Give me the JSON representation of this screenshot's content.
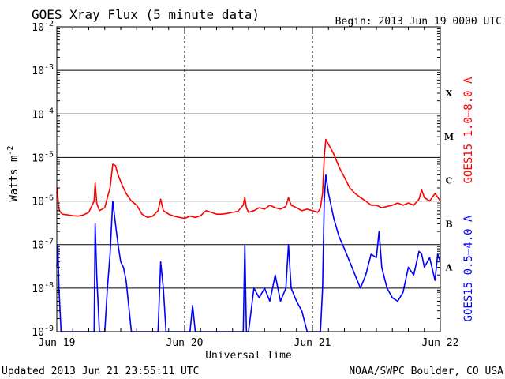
{
  "chart_data": {
    "type": "line",
    "title": "GOES Xray Flux (5 minute data)",
    "begin": "Begin:  2013 Jun 19 0000 UTC",
    "ylabel": "Watts m",
    "ylabel_sup": "-2",
    "xlabel": "Universal Time",
    "updated": "Updated 2013 Jun 21 23:55:11 UTC",
    "credit": "NOAA/SWPC Boulder, CO USA",
    "y_scale": "log",
    "ylim": [
      1e-09,
      0.01
    ],
    "xlim": [
      0,
      72
    ],
    "y_ticks": [
      {
        "value": 0.01,
        "base": "10",
        "exp": "-2"
      },
      {
        "value": 0.001,
        "base": "10",
        "exp": "-3"
      },
      {
        "value": 0.0001,
        "base": "10",
        "exp": "-4"
      },
      {
        "value": 1e-05,
        "base": "10",
        "exp": "-5"
      },
      {
        "value": 1e-06,
        "base": "10",
        "exp": "-6"
      },
      {
        "value": 1e-07,
        "base": "10",
        "exp": "-7"
      },
      {
        "value": 1e-08,
        "base": "10",
        "exp": "-8"
      },
      {
        "value": 1e-09,
        "base": "10",
        "exp": "-9"
      }
    ],
    "x_ticks": [
      {
        "value": 0,
        "label": "Jun 19"
      },
      {
        "value": 24,
        "label": "Jun 20"
      },
      {
        "value": 48,
        "label": "Jun 21"
      },
      {
        "value": 72,
        "label": "Jun 22"
      }
    ],
    "flare_classes": [
      {
        "label": "X",
        "value": 0.0003
      },
      {
        "label": "M",
        "value": 3e-05
      },
      {
        "label": "C",
        "value": 3e-06
      },
      {
        "label": "B",
        "value": 3e-07
      },
      {
        "label": "A",
        "value": 3e-08
      }
    ],
    "series": [
      {
        "name": "GOES15 1.0–8.0 A",
        "color": "#ff0000",
        "points": [
          [
            0,
            1.5e-06
          ],
          [
            0.1,
            2e-06
          ],
          [
            0.3,
            8e-07
          ],
          [
            0.5,
            6e-07
          ],
          [
            1,
            5e-07
          ],
          [
            2,
            4.8e-07
          ],
          [
            3,
            4.6e-07
          ],
          [
            4,
            4.5e-07
          ],
          [
            5,
            4.8e-07
          ],
          [
            6,
            5.5e-07
          ],
          [
            7,
            1e-06
          ],
          [
            7.2,
            2.6e-06
          ],
          [
            7.5,
            9e-07
          ],
          [
            8,
            6e-07
          ],
          [
            9,
            7e-07
          ],
          [
            9.5,
            1.2e-06
          ],
          [
            10,
            2e-06
          ],
          [
            10.5,
            7e-06
          ],
          [
            11,
            6.5e-06
          ],
          [
            11.5,
            4e-06
          ],
          [
            12,
            2.8e-06
          ],
          [
            12.5,
            2e-06
          ],
          [
            13,
            1.5e-06
          ],
          [
            14,
            1e-06
          ],
          [
            15,
            8e-07
          ],
          [
            16,
            5e-07
          ],
          [
            17,
            4.2e-07
          ],
          [
            18,
            4.5e-07
          ],
          [
            19,
            6e-07
          ],
          [
            19.5,
            1.1e-06
          ],
          [
            20,
            6e-07
          ],
          [
            21,
            5e-07
          ],
          [
            22,
            4.5e-07
          ],
          [
            23,
            4.2e-07
          ],
          [
            24,
            4e-07
          ],
          [
            25,
            4.5e-07
          ],
          [
            26,
            4.2e-07
          ],
          [
            27,
            4.6e-07
          ],
          [
            28,
            6e-07
          ],
          [
            29,
            5.5e-07
          ],
          [
            30,
            5e-07
          ],
          [
            31,
            5e-07
          ],
          [
            32,
            5.2e-07
          ],
          [
            33,
            5.5e-07
          ],
          [
            34,
            5.8e-07
          ],
          [
            35,
            8e-07
          ],
          [
            35.3,
            1.2e-06
          ],
          [
            35.6,
            7e-07
          ],
          [
            36,
            5.5e-07
          ],
          [
            37,
            6e-07
          ],
          [
            38,
            7e-07
          ],
          [
            39,
            6.5e-07
          ],
          [
            40,
            8e-07
          ],
          [
            41,
            7e-07
          ],
          [
            42,
            6.5e-07
          ],
          [
            43,
            7.5e-07
          ],
          [
            43.5,
            1.2e-06
          ],
          [
            44,
            8e-07
          ],
          [
            45,
            7e-07
          ],
          [
            46,
            6e-07
          ],
          [
            47,
            6.5e-07
          ],
          [
            48,
            6e-07
          ],
          [
            49,
            5.5e-07
          ],
          [
            49.5,
            7e-07
          ],
          [
            49.9,
            1.5e-06
          ],
          [
            50.2,
            1e-05
          ],
          [
            50.5,
            2.6e-05
          ],
          [
            51,
            2e-05
          ],
          [
            52,
            1.2e-05
          ],
          [
            53,
            6e-06
          ],
          [
            54,
            3.5e-06
          ],
          [
            55,
            2e-06
          ],
          [
            56,
            1.5e-06
          ],
          [
            57,
            1.2e-06
          ],
          [
            58,
            1e-06
          ],
          [
            59,
            8e-07
          ],
          [
            60,
            8e-07
          ],
          [
            61,
            7e-07
          ],
          [
            62,
            7.5e-07
          ],
          [
            63,
            8e-07
          ],
          [
            64,
            9e-07
          ],
          [
            65,
            8e-07
          ],
          [
            66,
            9e-07
          ],
          [
            67,
            8e-07
          ],
          [
            68,
            1.1e-06
          ],
          [
            68.5,
            1.8e-06
          ],
          [
            69,
            1.2e-06
          ],
          [
            70,
            1e-06
          ],
          [
            71,
            1.5e-06
          ],
          [
            72,
            1e-06
          ]
        ]
      },
      {
        "name": "GOES15 0.5–4.0 A",
        "color": "#0000ff",
        "points": [
          [
            0,
            3e-08
          ],
          [
            0.2,
            1e-07
          ],
          [
            0.4,
            1e-08
          ],
          [
            0.8,
            1e-09
          ],
          [
            1,
            1e-09
          ],
          [
            2,
            1e-09
          ],
          [
            3,
            1e-09
          ],
          [
            4,
            1e-09
          ],
          [
            5,
            1e-09
          ],
          [
            6,
            1e-09
          ],
          [
            7,
            1e-09
          ],
          [
            7.2,
            3e-07
          ],
          [
            7.5,
            2e-08
          ],
          [
            8,
            1e-09
          ],
          [
            9,
            1e-09
          ],
          [
            9.5,
            1e-08
          ],
          [
            10,
            6e-08
          ],
          [
            10.5,
            1e-06
          ],
          [
            11,
            3e-07
          ],
          [
            11.5,
            1e-07
          ],
          [
            12,
            4e-08
          ],
          [
            12.5,
            3e-08
          ],
          [
            13,
            1.5e-08
          ],
          [
            14,
            1e-09
          ],
          [
            15,
            1e-09
          ],
          [
            15.5,
            1e-09
          ],
          [
            16,
            1e-09
          ],
          [
            16.5,
            1e-09
          ],
          [
            17,
            1e-09
          ],
          [
            17.5,
            1e-09
          ],
          [
            18,
            1e-09
          ],
          [
            19,
            1e-09
          ],
          [
            19.5,
            4e-08
          ],
          [
            20,
            1e-08
          ],
          [
            20.5,
            1e-09
          ],
          [
            21,
            1e-09
          ],
          [
            22,
            1e-09
          ],
          [
            23,
            1e-09
          ],
          [
            24,
            1e-09
          ],
          [
            25,
            1e-09
          ],
          [
            25.5,
            4e-09
          ],
          [
            26,
            1e-09
          ],
          [
            27,
            1e-09
          ],
          [
            28,
            1e-09
          ],
          [
            29,
            1e-09
          ],
          [
            30,
            1e-09
          ],
          [
            31,
            1e-09
          ],
          [
            32,
            1e-09
          ],
          [
            33,
            1e-09
          ],
          [
            34,
            1e-09
          ],
          [
            35,
            1e-09
          ],
          [
            35.3,
            1e-07
          ],
          [
            35.6,
            1e-09
          ],
          [
            36,
            1e-09
          ],
          [
            37,
            1e-08
          ],
          [
            38,
            6e-09
          ],
          [
            39,
            1e-08
          ],
          [
            40,
            5e-09
          ],
          [
            41,
            2e-08
          ],
          [
            42,
            5e-09
          ],
          [
            43,
            1e-08
          ],
          [
            43.5,
            1e-07
          ],
          [
            44,
            1e-08
          ],
          [
            45,
            5e-09
          ],
          [
            46,
            3e-09
          ],
          [
            47,
            1e-09
          ],
          [
            48,
            1e-09
          ],
          [
            49,
            1e-09
          ],
          [
            49.5,
            1e-09
          ],
          [
            49.9,
            1e-08
          ],
          [
            50.2,
            1e-06
          ],
          [
            50.5,
            4e-06
          ],
          [
            51,
            1.5e-06
          ],
          [
            52,
            4e-07
          ],
          [
            53,
            1.5e-07
          ],
          [
            54,
            8e-08
          ],
          [
            55,
            4e-08
          ],
          [
            56,
            2e-08
          ],
          [
            57,
            1e-08
          ],
          [
            58,
            2e-08
          ],
          [
            59,
            6e-08
          ],
          [
            60,
            5e-08
          ],
          [
            60.5,
            2e-07
          ],
          [
            61,
            3e-08
          ],
          [
            62,
            1e-08
          ],
          [
            63,
            6e-09
          ],
          [
            64,
            5e-09
          ],
          [
            65,
            8e-09
          ],
          [
            66,
            3e-08
          ],
          [
            67,
            2e-08
          ],
          [
            68,
            7e-08
          ],
          [
            68.5,
            6e-08
          ],
          [
            69,
            3e-08
          ],
          [
            70,
            5e-08
          ],
          [
            71,
            1.5e-08
          ],
          [
            71.5,
            6e-08
          ],
          [
            72,
            4e-08
          ]
        ]
      }
    ]
  }
}
